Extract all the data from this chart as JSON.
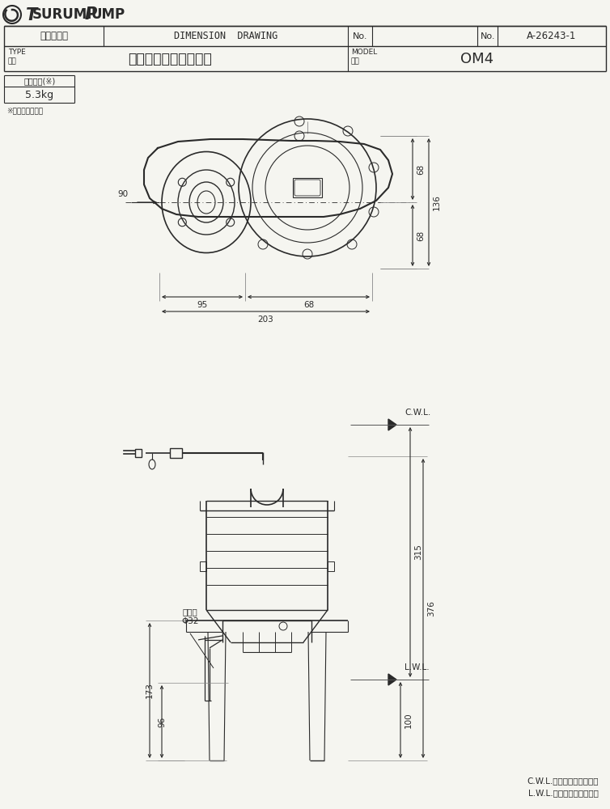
{
  "paper_color": "#f5f5f0",
  "line_color": "#2a2a2a",
  "dim_color": "#2a2a2a",
  "title_logo": "Tsurumi Pump",
  "header_row1_left": "外形寸法図",
  "header_row1_mid": "DIMENSION  DRAWING",
  "header_row1_no": "No.",
  "header_row1_right_no": "No.",
  "header_row1_right_val": "A-26243-1",
  "header_row2_type": "TYPE",
  "header_row2_name": "名称",
  "header_row2_desc": "小型汚水用水中ポンプ",
  "header_row2_model_label": "MODEL",
  "header_row2_model_label2": "型式",
  "header_row2_model_val": "OM4",
  "weight_label": "概算質量(※)",
  "weight_val": "5.3kg",
  "weight_note": "※ケーブルは除く",
  "dim_top_68a": "68",
  "dim_top_68b": "68",
  "dim_top_136": "136",
  "dim_top_90": "90",
  "dim_top_95": "95",
  "dim_top_68c": "68",
  "dim_top_203": "203",
  "dim_side_cwl_label": "C.W.L.",
  "dim_side_lwl_label": "L.W.L.",
  "dim_side_376": "376",
  "dim_side_315": "315",
  "dim_side_100": "100",
  "dim_side_173": "173",
  "dim_side_96": "96",
  "dim_bore_label": "呼び径",
  "dim_bore_val": "Φ32",
  "footnote1": "C.W.L.：連続運転最低水位",
  "footnote2": "L.W.L.：運転可能最低水位"
}
